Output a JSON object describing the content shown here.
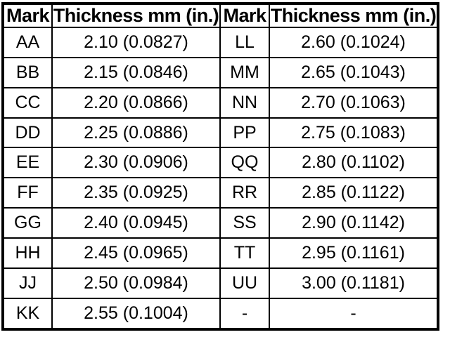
{
  "table": {
    "headers": [
      "Mark",
      "Thickness mm (in.)",
      "Mark",
      "Thickness mm (in.)"
    ],
    "rows": [
      [
        "AA",
        "2.10 (0.0827)",
        "LL",
        "2.60 (0.1024)"
      ],
      [
        "BB",
        "2.15 (0.0846)",
        "MM",
        "2.65 (0.1043)"
      ],
      [
        "CC",
        "2.20 (0.0866)",
        "NN",
        "2.70 (0.1063)"
      ],
      [
        "DD",
        "2.25 (0.0886)",
        "PP",
        "2.75 (0.1083)"
      ],
      [
        "EE",
        "2.30 (0.0906)",
        "QQ",
        "2.80 (0.1102)"
      ],
      [
        "FF",
        "2.35 (0.0925)",
        "RR",
        "2.85 (0.1122)"
      ],
      [
        "GG",
        "2.40 (0.0945)",
        "SS",
        "2.90 (0.1142)"
      ],
      [
        "HH",
        "2.45 (0.0965)",
        "TT",
        "2.95 (0.1161)"
      ],
      [
        "JJ",
        "2.50 (0.0984)",
        "UU",
        "3.00 (0.1181)"
      ],
      [
        "KK",
        "2.55 (0.1004)",
        "-",
        "-"
      ]
    ],
    "colors": {
      "border": "#000000",
      "text": "#000000",
      "background": "#ffffff"
    }
  }
}
